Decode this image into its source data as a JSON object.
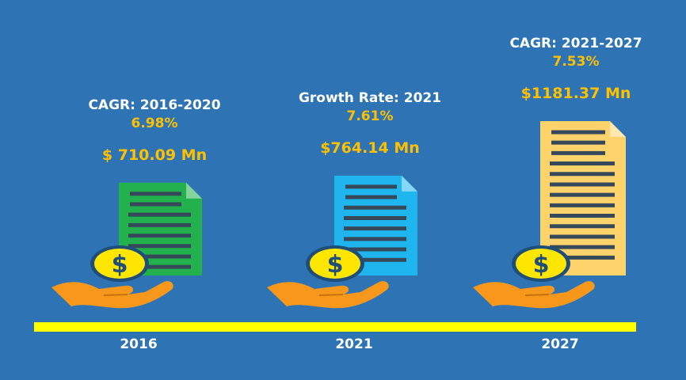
{
  "colors": {
    "background": "#2e74b5",
    "timeline": "#ffff00",
    "label": "#ffffff",
    "highlight": "#ffc000",
    "doc_2016": "#22b14c",
    "doc_2021": "#1fb6f0",
    "doc_2027": "#ffd36b",
    "coin": "#ffe600",
    "coin_ring": "#1f4e79",
    "hand": "#f7981d",
    "doc_lines": "#36495a"
  },
  "icons": [
    "document-icon",
    "dollar-coin-icon",
    "hand-icon"
  ],
  "chart_data": {
    "type": "bar",
    "categories": [
      "2016",
      "2021",
      "2027"
    ],
    "values": [
      710.09,
      764.14,
      1181.37
    ],
    "value_labels": [
      "$ 710.09 Mn",
      "$764.14 Mn",
      "$1181.37 Mn"
    ],
    "metrics": [
      {
        "label": "CAGR: 2016-2020",
        "rate": "6.98%"
      },
      {
        "label": "Growth Rate: 2021",
        "rate": "7.61%"
      },
      {
        "label": "CAGR: 2021-2027",
        "rate": "7.53%"
      }
    ],
    "grid": false,
    "legend": "none"
  }
}
